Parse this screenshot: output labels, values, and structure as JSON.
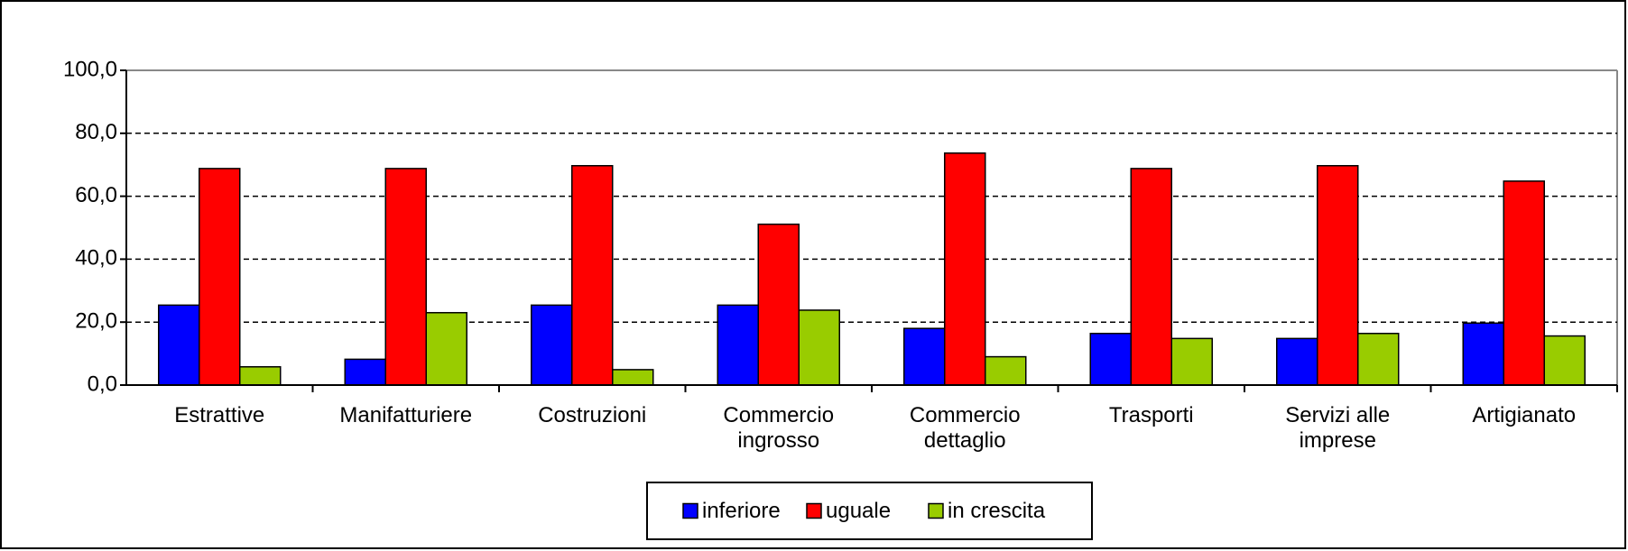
{
  "chart_data": {
    "type": "bar",
    "categories": [
      "Estrattive",
      "Manifatturiere",
      "Costruzioni",
      "Commercio ingrosso",
      "Commercio dettaglio",
      "Trasporti",
      "Servizi alle imprese",
      "Artigianato"
    ],
    "series": [
      {
        "name": "inferiore",
        "color": "#0000ff",
        "values": [
          25.4,
          8.2,
          25.4,
          25.4,
          18.0,
          16.4,
          14.8,
          19.7
        ]
      },
      {
        "name": "uguale",
        "color": "#ff0000",
        "values": [
          68.8,
          68.8,
          69.7,
          51.1,
          73.7,
          68.8,
          69.7,
          64.8
        ]
      },
      {
        "name": "in crescita",
        "color": "#99cc00",
        "values": [
          5.8,
          23.0,
          4.9,
          23.8,
          9.0,
          14.8,
          16.4,
          15.6
        ]
      }
    ],
    "ylim": [
      0,
      100
    ],
    "yticks": [
      {
        "value": 0,
        "label": "0,0"
      },
      {
        "value": 20,
        "label": "20,0"
      },
      {
        "value": 40,
        "label": "40,0"
      },
      {
        "value": 60,
        "label": "60,0"
      },
      {
        "value": 80,
        "label": "80,0"
      },
      {
        "value": 100,
        "label": "100,0"
      }
    ],
    "grid": true,
    "legend": "bottom"
  }
}
